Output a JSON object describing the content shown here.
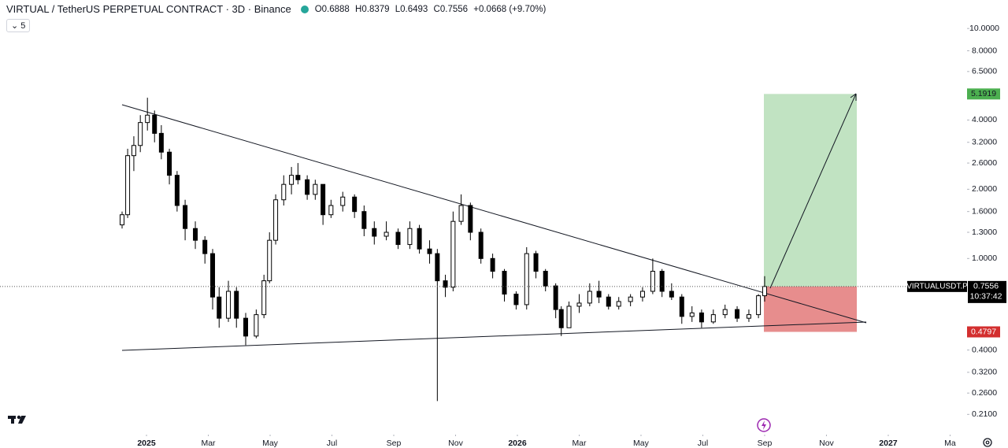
{
  "chart_data": {
    "type": "candlestick",
    "title": "VIRTUAL / TetherUS PERPETUAL CONTRACT · 3D · Binance",
    "ohlc_prefixes": [
      "O",
      "H",
      "L",
      "C"
    ],
    "change_label": "+0.0668 (+9.70%)",
    "interval_badge": "5",
    "symbol": "VIRTUALUSDT.P",
    "countdown": "10:37:42",
    "log_scale": true,
    "up_color": "#ffffff",
    "down_color": "#000000",
    "x": [
      -0.79,
      -0.61,
      -0.41,
      -0.2,
      0.03,
      0.26,
      0.48,
      0.74,
      0.99,
      1.25,
      1.58,
      1.89,
      2.14,
      2.35,
      2.65,
      2.91,
      3.21,
      3.55,
      3.8,
      3.98,
      4.18,
      4.44,
      4.69,
      4.9,
      5.2,
      5.46,
      5.71,
      5.97,
      6.35,
      6.73,
      7.04,
      7.37,
      7.76,
      8.14,
      8.52,
      8.83,
      9.16,
      9.41,
      9.67,
      9.92,
      10.18,
      10.48,
      10.82,
      11.2,
      11.58,
      11.96,
      12.3,
      12.6,
      12.91,
      13.24,
      13.42,
      13.67,
      14.0,
      14.34,
      14.64,
      14.95,
      15.28,
      15.66,
      16.05,
      16.38,
      16.68,
      16.99,
      17.32,
      17.65,
      17.96,
      18.34,
      18.72,
      19.11,
      19.49,
      19.8,
      20.0
    ],
    "open": [
      1.4,
      1.55,
      2.8,
      3.1,
      3.9,
      4.2,
      3.5,
      2.9,
      2.3,
      1.7,
      1.35,
      1.2,
      1.05,
      0.68,
      0.55,
      0.72,
      0.55,
      0.46,
      0.57,
      0.8,
      1.2,
      1.8,
      2.1,
      2.3,
      2.2,
      1.9,
      2.1,
      1.55,
      1.7,
      1.85,
      1.6,
      1.35,
      1.25,
      1.3,
      1.15,
      1.35,
      1.1,
      1.05,
      0.8,
      0.75,
      1.45,
      1.7,
      1.3,
      1.0,
      0.88,
      0.7,
      0.63,
      1.05,
      0.88,
      0.76,
      0.6,
      0.5,
      0.62,
      0.64,
      0.72,
      0.68,
      0.62,
      0.65,
      0.68,
      0.72,
      0.88,
      0.72,
      0.68,
      0.56,
      0.58,
      0.53,
      0.57,
      0.6,
      0.55,
      0.57,
      0.6888
    ],
    "high": [
      1.6,
      3.0,
      3.4,
      4.2,
      5.0,
      4.4,
      3.8,
      3.0,
      2.4,
      1.8,
      1.45,
      1.25,
      1.1,
      0.75,
      0.8,
      0.75,
      0.58,
      0.6,
      0.85,
      1.3,
      1.9,
      2.3,
      2.5,
      2.6,
      2.3,
      2.2,
      2.1,
      1.8,
      1.95,
      1.9,
      1.7,
      1.45,
      1.45,
      1.35,
      1.45,
      1.4,
      1.2,
      1.1,
      0.85,
      1.6,
      1.9,
      1.75,
      1.35,
      1.05,
      0.9,
      0.72,
      1.12,
      1.08,
      0.9,
      0.78,
      0.62,
      0.65,
      0.7,
      0.78,
      0.8,
      0.7,
      0.68,
      0.7,
      0.75,
      1.0,
      0.9,
      0.78,
      0.7,
      0.62,
      0.6,
      0.6,
      0.63,
      0.62,
      0.6,
      0.7,
      0.8379
    ],
    "low": [
      1.35,
      1.5,
      2.4,
      2.9,
      3.6,
      3.2,
      2.7,
      2.1,
      1.6,
      1.2,
      1.1,
      0.95,
      0.6,
      0.5,
      0.53,
      0.5,
      0.42,
      0.45,
      0.55,
      0.78,
      1.15,
      1.7,
      1.9,
      2.1,
      1.8,
      1.8,
      1.4,
      1.5,
      1.6,
      1.5,
      1.25,
      1.15,
      1.2,
      1.1,
      1.1,
      1.05,
      0.95,
      0.24,
      0.68,
      0.72,
      1.4,
      1.2,
      0.95,
      0.82,
      0.65,
      0.6,
      0.6,
      0.82,
      0.72,
      0.55,
      0.46,
      0.5,
      0.58,
      0.62,
      0.64,
      0.6,
      0.6,
      0.62,
      0.65,
      0.7,
      0.68,
      0.66,
      0.52,
      0.53,
      0.5,
      0.52,
      0.55,
      0.53,
      0.53,
      0.55,
      0.6493
    ],
    "close": [
      1.55,
      2.8,
      3.1,
      3.9,
      4.2,
      3.5,
      2.9,
      2.3,
      1.7,
      1.35,
      1.2,
      1.05,
      0.68,
      0.55,
      0.72,
      0.55,
      0.46,
      0.57,
      0.8,
      1.2,
      1.8,
      2.1,
      2.3,
      2.2,
      1.9,
      2.1,
      1.55,
      1.7,
      1.85,
      1.6,
      1.35,
      1.25,
      1.3,
      1.15,
      1.35,
      1.1,
      1.05,
      0.8,
      0.75,
      1.45,
      1.7,
      1.3,
      1.0,
      0.88,
      0.7,
      0.63,
      1.05,
      0.88,
      0.76,
      0.6,
      0.5,
      0.62,
      0.64,
      0.72,
      0.68,
      0.62,
      0.65,
      0.68,
      0.72,
      0.88,
      0.72,
      0.68,
      0.56,
      0.58,
      0.53,
      0.57,
      0.6,
      0.55,
      0.57,
      0.6888,
      0.7556
    ],
    "xlim": [
      -4.74,
      26.6
    ],
    "xticks": [
      {
        "value": 0,
        "label": "2025"
      },
      {
        "value": 2,
        "label": "Mar"
      },
      {
        "value": 4,
        "label": "May"
      },
      {
        "value": 6,
        "label": "Jul"
      },
      {
        "value": 8,
        "label": "Sep"
      },
      {
        "value": 10,
        "label": "Nov"
      },
      {
        "value": 12,
        "label": "2026"
      },
      {
        "value": 14,
        "label": "Mar"
      },
      {
        "value": 16,
        "label": "May"
      },
      {
        "value": 18,
        "label": "Jul"
      },
      {
        "value": 20,
        "label": "Sep"
      },
      {
        "value": 22,
        "label": "Nov"
      },
      {
        "value": 24,
        "label": "2027"
      },
      {
        "value": 26,
        "label": "Ma"
      }
    ],
    "ylim": [
      0.177,
      13.3
    ],
    "yticks": [
      {
        "value": 10,
        "label": "10.0000"
      },
      {
        "value": 8,
        "label": "8.0000"
      },
      {
        "value": 6.5,
        "label": "6.5000"
      },
      {
        "value": 4,
        "label": "4.0000"
      },
      {
        "value": 3.2,
        "label": "3.2000"
      },
      {
        "value": 2.6,
        "label": "2.6000"
      },
      {
        "value": 2,
        "label": "2.0000"
      },
      {
        "value": 1.6,
        "label": "1.6000"
      },
      {
        "value": 1.3,
        "label": "1.3000"
      },
      {
        "value": 1,
        "label": "1.0000"
      },
      {
        "value": 0.4,
        "label": "0.4000"
      },
      {
        "value": 0.32,
        "label": "0.3200"
      },
      {
        "value": 0.26,
        "label": "0.2600"
      },
      {
        "value": 0.21,
        "label": "0.2100"
      }
    ],
    "position": {
      "target": 5.1919,
      "stop": 0.4797,
      "target_color": "#4caf50",
      "stop_color": "#d32f2f"
    }
  }
}
